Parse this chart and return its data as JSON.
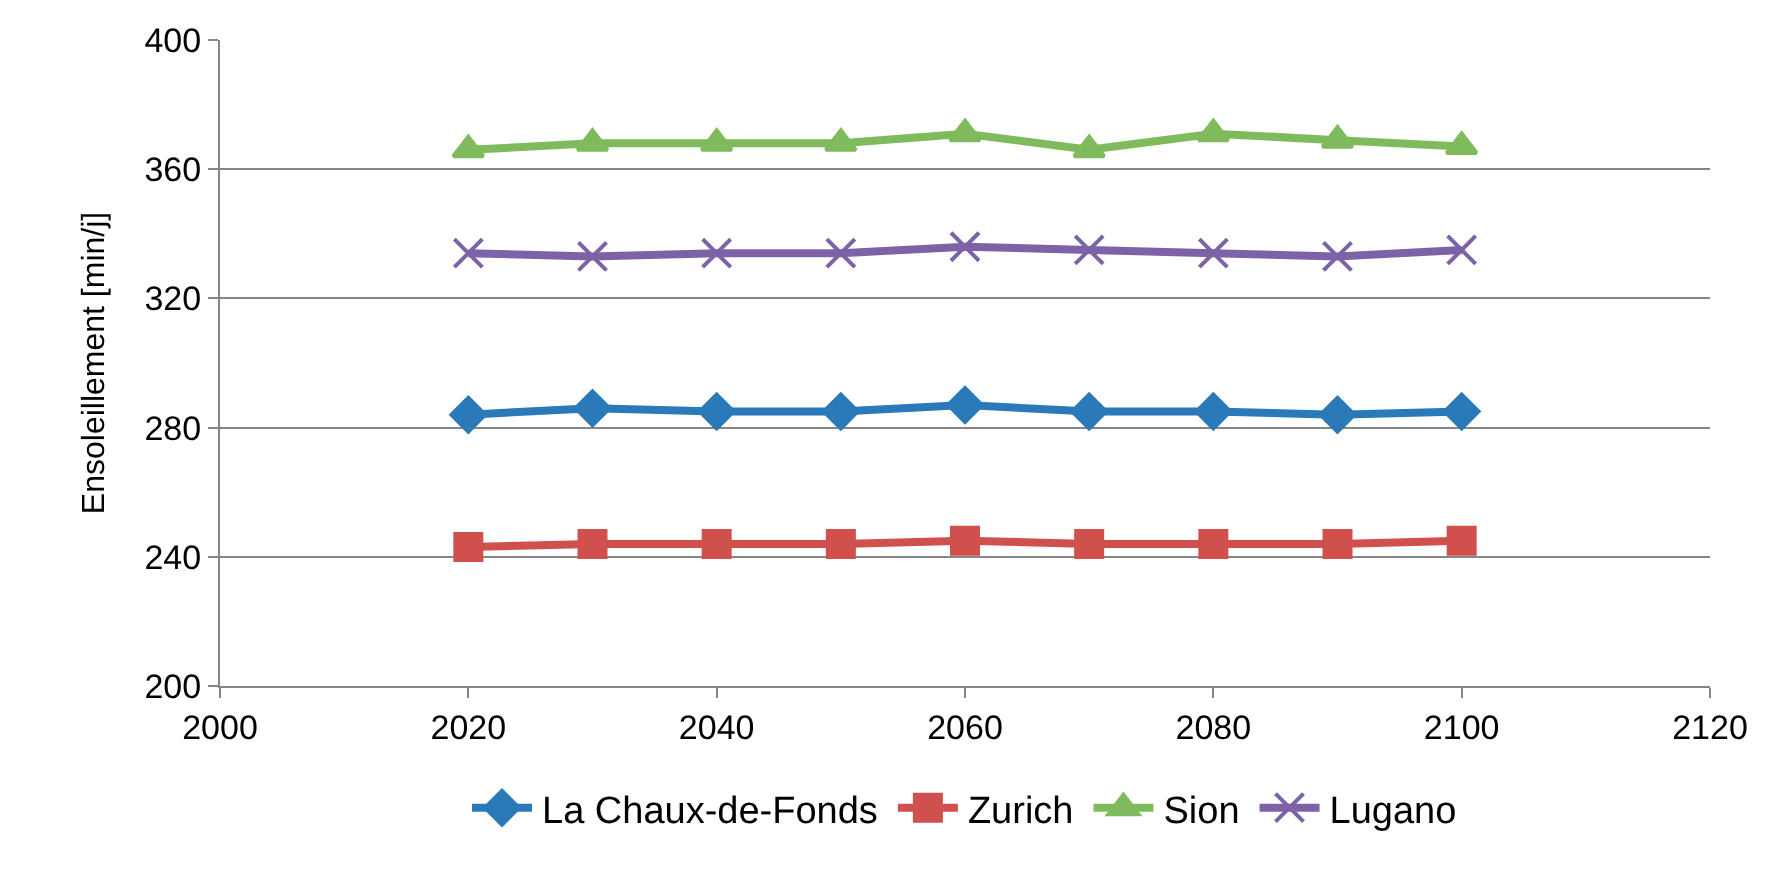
{
  "chart_data": {
    "type": "line",
    "ylabel": "Ensoleillement [min/j]",
    "x": [
      2020,
      2030,
      2040,
      2050,
      2060,
      2070,
      2080,
      2090,
      2100
    ],
    "xlim": [
      2000,
      2120
    ],
    "xticks": [
      2000,
      2020,
      2040,
      2060,
      2080,
      2100,
      2120
    ],
    "ylim": [
      200,
      400
    ],
    "yticks": [
      200,
      240,
      280,
      320,
      360,
      400
    ],
    "grid": "y",
    "legend": "bottom",
    "series": [
      {
        "name": "La Chaux-de-Fonds",
        "color": "#2a7ab9",
        "marker": "diamond",
        "values": [
          284,
          286,
          285,
          285,
          287,
          285,
          285,
          284,
          285
        ]
      },
      {
        "name": "Zurich",
        "color": "#d0504e",
        "marker": "square",
        "values": [
          243,
          244,
          244,
          244,
          245,
          244,
          244,
          244,
          245
        ]
      },
      {
        "name": "Sion",
        "color": "#7fbb5c",
        "marker": "triangle",
        "values": [
          366,
          368,
          368,
          368,
          371,
          366,
          371,
          369,
          367
        ]
      },
      {
        "name": "Lugano",
        "color": "#7d62a8",
        "marker": "cross",
        "values": [
          334,
          333,
          334,
          334,
          336,
          335,
          334,
          333,
          335
        ]
      }
    ]
  }
}
